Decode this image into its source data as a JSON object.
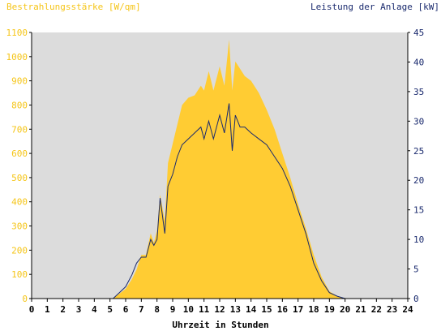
{
  "chart_data": {
    "type": "area",
    "title": "",
    "ylabel_left": "Bestrahlungsstärke [W/qm]",
    "ylabel_right": "Leistung der Anlage [kW]",
    "xlabel": "Uhrzeit in Stunden",
    "xlim": [
      0,
      24
    ],
    "ylim_left": [
      0,
      1100
    ],
    "ylim_right": [
      0,
      45
    ],
    "x_ticks": [
      "0",
      "1",
      "2",
      "3",
      "4",
      "5",
      "6",
      "7",
      "8",
      "9",
      "10",
      "11",
      "12",
      "13",
      "14",
      "15",
      "16",
      "17",
      "18",
      "19",
      "20",
      "21",
      "22",
      "23",
      "24"
    ],
    "y_ticks_left": [
      "0",
      "100",
      "200",
      "300",
      "400",
      "500",
      "600",
      "700",
      "800",
      "900",
      "1000",
      "1100"
    ],
    "y_ticks_right": [
      "0",
      "5",
      "10",
      "15",
      "20",
      "25",
      "30",
      "35",
      "40",
      "45"
    ],
    "grid": false,
    "colors": {
      "irradiance": "#ffcc33",
      "power": "#1a2a6e",
      "plot_bg": "#dcdcdc"
    },
    "series": [
      {
        "name": "Bestrahlungsstärke [W/qm]",
        "axis": "left",
        "x": [
          5.2,
          5.6,
          6.0,
          6.4,
          6.7,
          7.0,
          7.3,
          7.6,
          7.8,
          8.0,
          8.2,
          8.5,
          8.7,
          9.0,
          9.3,
          9.6,
          10.0,
          10.4,
          10.8,
          11.0,
          11.3,
          11.6,
          12.0,
          12.3,
          12.6,
          12.8,
          13.0,
          13.3,
          13.6,
          14.0,
          14.5,
          15.0,
          15.5,
          16.0,
          16.5,
          17.0,
          17.5,
          18.0,
          18.5,
          19.0,
          19.5,
          20.0
        ],
        "y": [
          0,
          20,
          40,
          80,
          120,
          180,
          180,
          270,
          230,
          280,
          430,
          320,
          560,
          640,
          720,
          800,
          830,
          840,
          880,
          860,
          940,
          860,
          960,
          880,
          1070,
          860,
          980,
          950,
          920,
          900,
          850,
          780,
          700,
          600,
          500,
          390,
          290,
          180,
          90,
          30,
          10,
          0
        ]
      },
      {
        "name": "Leistung der Anlage [kW]",
        "axis": "right",
        "x": [
          5.2,
          5.6,
          6.0,
          6.4,
          6.7,
          7.0,
          7.3,
          7.6,
          7.8,
          8.0,
          8.2,
          8.5,
          8.7,
          9.0,
          9.3,
          9.6,
          10.0,
          10.4,
          10.8,
          11.0,
          11.3,
          11.6,
          12.0,
          12.3,
          12.6,
          12.8,
          13.0,
          13.3,
          13.6,
          14.0,
          14.5,
          15.0,
          15.5,
          16.0,
          16.5,
          17.0,
          17.5,
          18.0,
          18.5,
          19.0,
          19.5,
          20.0
        ],
        "y": [
          0,
          1,
          2,
          4,
          6,
          7,
          7,
          10,
          9,
          10,
          17,
          11,
          19,
          21,
          24,
          26,
          27,
          28,
          29,
          27,
          30,
          27,
          31,
          28,
          33,
          25,
          31,
          29,
          29,
          28,
          27,
          26,
          24,
          22,
          19,
          15,
          11,
          6,
          3,
          1,
          0.4,
          0
        ]
      }
    ]
  }
}
